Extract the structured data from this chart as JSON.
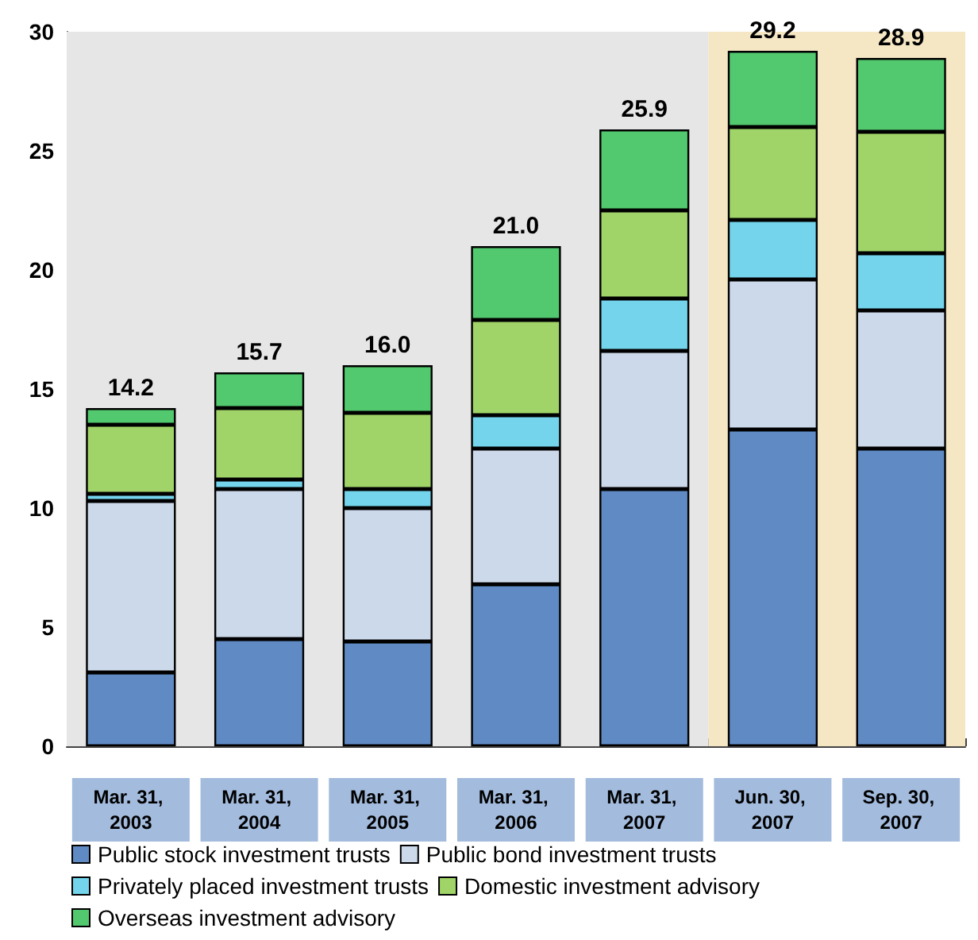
{
  "chart_data": {
    "type": "bar",
    "stacked": true,
    "categories": [
      "Mar. 31, 2003",
      "Mar. 31, 2004",
      "Mar. 31, 2005",
      "Mar. 31, 2006",
      "Mar. 31, 2007",
      "Jun. 30, 2007",
      "Sep. 30, 2007"
    ],
    "series": [
      {
        "name": "Public stock investment trusts",
        "color": "#5f8ac4",
        "values": [
          3.1,
          4.5,
          4.4,
          6.8,
          10.8,
          13.3,
          12.5
        ]
      },
      {
        "name": "Public bond investment trusts",
        "color": "#ccd9ea",
        "values": [
          7.2,
          6.3,
          5.6,
          5.7,
          5.8,
          6.3,
          5.8
        ]
      },
      {
        "name": "Privately placed investment trusts",
        "color": "#74d4ec",
        "values": [
          0.3,
          0.4,
          0.8,
          1.4,
          2.2,
          2.5,
          2.4
        ]
      },
      {
        "name": "Domestic investment advisory",
        "color": "#a0d468",
        "values": [
          2.9,
          3.0,
          3.2,
          4.0,
          3.7,
          3.9,
          5.1
        ]
      },
      {
        "name": "Overseas investment advisory",
        "color": "#52c96e",
        "values": [
          0.7,
          1.5,
          2.0,
          3.1,
          3.4,
          3.2,
          3.1
        ]
      }
    ],
    "totals": [
      "14.2",
      "15.7",
      "16.0",
      "21.0",
      "25.9",
      "29.2",
      "28.9"
    ],
    "ylim": [
      0,
      30
    ],
    "yticks": [
      0,
      5,
      10,
      15,
      20,
      25,
      30
    ],
    "bands": [
      {
        "axis": "x",
        "from": "Mar. 31, 2003",
        "to": "Mar. 31, 2007",
        "color": "#e6e6e6"
      },
      {
        "axis": "x",
        "from": "Jun. 30, 2007",
        "to": "Sep. 30, 2007",
        "color": "#f5e6c4"
      }
    ],
    "grid": false,
    "legend": "bottom"
  }
}
